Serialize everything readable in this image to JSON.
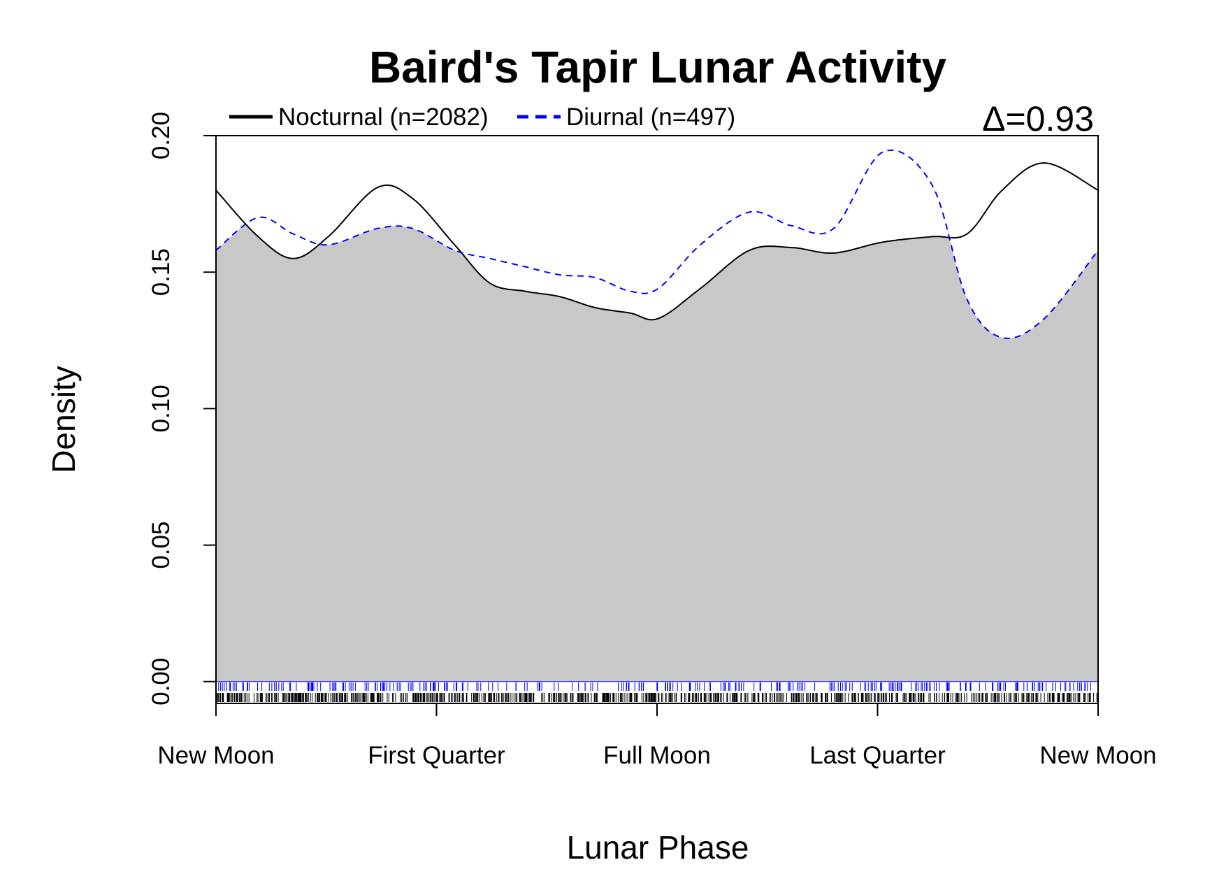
{
  "chart_data": {
    "type": "area",
    "title": "Baird's Tapir Lunar Activity",
    "xlabel": "Lunar Phase",
    "ylabel": "Density",
    "x_tick_labels": [
      "New Moon",
      "First Quarter",
      "Full Moon",
      "Last Quarter",
      "New Moon"
    ],
    "x_tick_values": [
      0,
      1.5708,
      3.1416,
      4.7124,
      6.2832
    ],
    "xlim": [
      0,
      6.2832
    ],
    "ylim": [
      -0.008,
      0.2
    ],
    "y_ticks": [
      0.0,
      0.05,
      0.1,
      0.15,
      0.2
    ],
    "y_tick_labels": [
      "0.00",
      "0.05",
      "0.10",
      "0.15",
      "0.20"
    ],
    "grid": false,
    "legend_position": "top-left",
    "annotation": {
      "symbol": "Δ",
      "text": "=0.93"
    },
    "overlap_fill_color": "#c8c8c8",
    "series": [
      {
        "name": "Nocturnal (n=2082)",
        "color": "#000000",
        "line_style": "solid",
        "x": [
          0,
          0.3,
          0.55,
          0.8,
          1.15,
          1.4,
          1.7,
          1.95,
          2.2,
          2.45,
          2.7,
          2.95,
          3.15,
          3.45,
          3.8,
          4.1,
          4.4,
          4.75,
          5.1,
          5.35,
          5.6,
          5.9,
          6.2832
        ],
        "values": [
          0.18,
          0.163,
          0.155,
          0.163,
          0.181,
          0.177,
          0.16,
          0.146,
          0.143,
          0.141,
          0.137,
          0.135,
          0.133,
          0.144,
          0.158,
          0.159,
          0.157,
          0.161,
          0.163,
          0.164,
          0.18,
          0.19,
          0.18
        ]
      },
      {
        "name": "Diurnal (n=497)",
        "color": "#0000ff",
        "line_style": "dashed",
        "x": [
          0,
          0.3,
          0.55,
          0.8,
          1.15,
          1.4,
          1.7,
          1.95,
          2.2,
          2.45,
          2.7,
          2.95,
          3.15,
          3.45,
          3.8,
          4.1,
          4.4,
          4.75,
          5.1,
          5.35,
          5.6,
          5.9,
          6.2832
        ],
        "values": [
          0.158,
          0.17,
          0.164,
          0.16,
          0.166,
          0.166,
          0.158,
          0.155,
          0.152,
          0.149,
          0.148,
          0.143,
          0.144,
          0.16,
          0.172,
          0.167,
          0.166,
          0.194,
          0.182,
          0.14,
          0.126,
          0.133,
          0.158
        ]
      }
    ],
    "rug": {
      "nocturnal_color": "#000000",
      "diurnal_color": "#0000ff"
    }
  }
}
